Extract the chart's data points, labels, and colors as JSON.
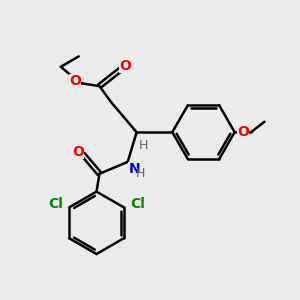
{
  "background_color": "#ebebeb",
  "bond_color": "#000000",
  "bond_width": 1.8,
  "atom_colors": {
    "O": "#ff0000",
    "N": "#0000cc",
    "Cl": "#008800",
    "H": "#666666",
    "C": "#000000"
  },
  "font_size": 10,
  "fig_size": [
    3.0,
    3.0
  ],
  "dpi": 100
}
